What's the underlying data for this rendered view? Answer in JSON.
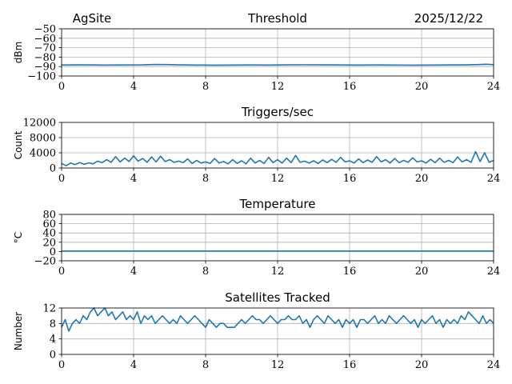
{
  "header": {
    "site": "AgSite",
    "date": "2025/12/22"
  },
  "colors": {
    "line": "#1f77b4",
    "grid": "#b0b0b0",
    "axis": "#000000"
  },
  "chart_data": [
    {
      "type": "line",
      "title": "Threshold",
      "xlabel": "",
      "ylabel": "dBm",
      "xlim": [
        0,
        24
      ],
      "ylim": [
        -100,
        -50
      ],
      "xticks": [
        0,
        4,
        8,
        12,
        16,
        20,
        24
      ],
      "yticks": [
        -100,
        -90,
        -80,
        -70,
        -60,
        -50
      ],
      "ytick_labels": [
        "−100",
        "−90",
        "−80",
        "−70",
        "−60",
        "−50"
      ],
      "grid": true,
      "series": [
        {
          "x": [
            0,
            0.5,
            1.0,
            1.8,
            2.5,
            3.5,
            4.5,
            5.2,
            5.8,
            6.5,
            7.5,
            8.5,
            9.5,
            10.5,
            11.5,
            12.5,
            13.5,
            14.5,
            15.5,
            16.5,
            17.5,
            18.5,
            19.5,
            20.5,
            21.5,
            22.5,
            23.2,
            23.6,
            24
          ],
          "y": [
            -88.3,
            -88.3,
            -88.2,
            -88.3,
            -88.4,
            -88.3,
            -88.2,
            -87.8,
            -87.9,
            -88.2,
            -88.4,
            -88.5,
            -88.4,
            -88.3,
            -88.4,
            -88.2,
            -88.1,
            -88.2,
            -88.3,
            -88.4,
            -88.3,
            -88.4,
            -88.5,
            -88.4,
            -88.3,
            -88.2,
            -87.9,
            -87.5,
            -88.0
          ]
        }
      ]
    },
    {
      "type": "line",
      "title": "Triggers/sec",
      "xlabel": "",
      "ylabel": "Count",
      "xlim": [
        0,
        24
      ],
      "ylim": [
        0,
        12000
      ],
      "xticks": [
        0,
        4,
        8,
        12,
        16,
        20,
        24
      ],
      "yticks": [
        0,
        4000,
        8000,
        12000
      ],
      "ytick_labels": [
        "0",
        "4000",
        "8000",
        "12000"
      ],
      "grid": true,
      "series": [
        {
          "x": [
            0,
            0.25,
            0.5,
            0.75,
            1.0,
            1.25,
            1.5,
            1.75,
            2.0,
            2.25,
            2.5,
            2.75,
            3.0,
            3.25,
            3.5,
            3.75,
            4.0,
            4.25,
            4.5,
            4.75,
            5.0,
            5.25,
            5.5,
            5.75,
            6.0,
            6.25,
            6.5,
            6.75,
            7.0,
            7.25,
            7.5,
            7.75,
            8.0,
            8.25,
            8.5,
            8.75,
            9.0,
            9.25,
            9.5,
            9.75,
            10.0,
            10.25,
            10.5,
            10.75,
            11.0,
            11.25,
            11.5,
            11.75,
            12.0,
            12.25,
            12.5,
            12.75,
            13.0,
            13.25,
            13.5,
            13.75,
            14.0,
            14.25,
            14.5,
            14.75,
            15.0,
            15.25,
            15.5,
            15.75,
            16.0,
            16.25,
            16.5,
            16.75,
            17.0,
            17.25,
            17.5,
            17.75,
            18.0,
            18.25,
            18.5,
            18.75,
            19.0,
            19.25,
            19.5,
            19.75,
            20.0,
            20.25,
            20.5,
            20.75,
            21.0,
            21.25,
            21.5,
            21.75,
            22.0,
            22.25,
            22.5,
            22.75,
            23.0,
            23.25,
            23.5,
            23.75,
            24.0
          ],
          "y": [
            1200,
            600,
            1300,
            900,
            1400,
            1000,
            1350,
            1100,
            1800,
            1400,
            2200,
            1500,
            3000,
            1600,
            2600,
            1700,
            3200,
            1800,
            2500,
            1500,
            2900,
            1600,
            3100,
            1700,
            2200,
            1500,
            1800,
            1400,
            2400,
            1200,
            2000,
            1300,
            1600,
            1200,
            2500,
            1300,
            1700,
            1100,
            2200,
            1200,
            1900,
            1100,
            2600,
            1300,
            2000,
            1200,
            2800,
            1400,
            2200,
            1300,
            2600,
            1400,
            3300,
            1500,
            1800,
            1300,
            1900,
            1200,
            2100,
            1400,
            2300,
            1500,
            2800,
            1600,
            1900,
            1300,
            2400,
            1400,
            2100,
            1500,
            3000,
            1600,
            2200,
            1300,
            2500,
            1400,
            2000,
            1500,
            2700,
            1600,
            1900,
            1300,
            2300,
            1400,
            2600,
            1500,
            2000,
            1400,
            2900,
            1600,
            2200,
            1500,
            4300,
            1700,
            4000,
            1500,
            2000
          ]
        }
      ]
    },
    {
      "type": "line",
      "title": "Temperature",
      "xlabel": "",
      "ylabel": "°C",
      "xlim": [
        0,
        24
      ],
      "ylim": [
        -20,
        80
      ],
      "xticks": [
        0,
        4,
        8,
        12,
        16,
        20,
        24
      ],
      "yticks": [
        -20,
        0,
        20,
        40,
        60,
        80
      ],
      "ytick_labels": [
        "−20",
        "0",
        "20",
        "40",
        "60",
        "80"
      ],
      "grid": true,
      "series": [
        {
          "x": [
            0,
            4,
            8,
            12,
            16,
            20,
            24
          ],
          "y": [
            1,
            1,
            1,
            1,
            1,
            1,
            1
          ]
        }
      ]
    },
    {
      "type": "line",
      "title": "Satellites Tracked",
      "xlabel": "",
      "ylabel": "Number",
      "xlim": [
        0,
        24
      ],
      "ylim": [
        0,
        12
      ],
      "xticks": [
        0,
        4,
        8,
        12,
        16,
        20,
        24
      ],
      "yticks": [
        0,
        4,
        8,
        12
      ],
      "ytick_labels": [
        "0",
        "4",
        "8",
        "12"
      ],
      "grid": true,
      "series": [
        {
          "x": [
            0,
            0.2,
            0.4,
            0.6,
            0.8,
            1.0,
            1.2,
            1.4,
            1.6,
            1.8,
            2.0,
            2.2,
            2.4,
            2.6,
            2.8,
            3.0,
            3.2,
            3.4,
            3.6,
            3.8,
            4.0,
            4.2,
            4.4,
            4.6,
            4.8,
            5.0,
            5.2,
            5.4,
            5.6,
            5.8,
            6.0,
            6.2,
            6.4,
            6.6,
            6.8,
            7.0,
            7.2,
            7.4,
            7.6,
            7.8,
            8.0,
            8.2,
            8.4,
            8.6,
            8.8,
            9.0,
            9.2,
            9.4,
            9.6,
            9.8,
            10.0,
            10.2,
            10.4,
            10.6,
            10.8,
            11.0,
            11.2,
            11.4,
            11.6,
            11.8,
            12.0,
            12.2,
            12.4,
            12.6,
            12.8,
            13.0,
            13.2,
            13.4,
            13.6,
            13.8,
            14.0,
            14.2,
            14.4,
            14.6,
            14.8,
            15.0,
            15.2,
            15.4,
            15.6,
            15.8,
            16.0,
            16.2,
            16.4,
            16.6,
            16.8,
            17.0,
            17.2,
            17.4,
            17.6,
            17.8,
            18.0,
            18.2,
            18.4,
            18.6,
            18.8,
            19.0,
            19.2,
            19.4,
            19.6,
            19.8,
            20.0,
            20.2,
            20.4,
            20.6,
            20.8,
            21.0,
            21.2,
            21.4,
            21.6,
            21.8,
            22.0,
            22.2,
            22.4,
            22.6,
            22.8,
            23.0,
            23.2,
            23.4,
            23.6,
            23.8,
            24.0
          ],
          "y": [
            7,
            9,
            6,
            8,
            9,
            8,
            10,
            9,
            11,
            12,
            10,
            11,
            12,
            10,
            11,
            9,
            10,
            11,
            9,
            10,
            9,
            11,
            8,
            10,
            9,
            10,
            8,
            9,
            10,
            9,
            8,
            9,
            8,
            10,
            9,
            8,
            9,
            10,
            9,
            8,
            7,
            9,
            8,
            7,
            8,
            8,
            7,
            7,
            7,
            8,
            9,
            8,
            9,
            10,
            9,
            9,
            8,
            9,
            10,
            9,
            8,
            9,
            9,
            10,
            9,
            9,
            10,
            8,
            9,
            7,
            9,
            10,
            9,
            8,
            10,
            9,
            8,
            9,
            7,
            9,
            8,
            9,
            7,
            9,
            9,
            8,
            9,
            10,
            8,
            9,
            8,
            10,
            9,
            8,
            9,
            10,
            9,
            8,
            9,
            7,
            9,
            8,
            9,
            10,
            8,
            9,
            7,
            9,
            8,
            9,
            8,
            10,
            9,
            11,
            10,
            9,
            8,
            10,
            8,
            9,
            8
          ]
        }
      ]
    }
  ]
}
